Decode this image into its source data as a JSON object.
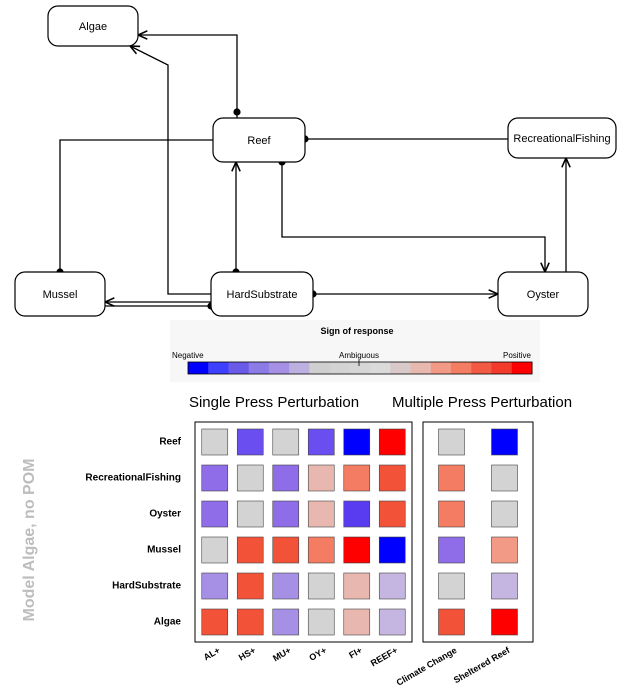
{
  "network": {
    "nodes": [
      {
        "id": "algae",
        "label": "Algae"
      },
      {
        "id": "reef",
        "label": "Reef"
      },
      {
        "id": "recfish",
        "label": "RecreationalFishing"
      },
      {
        "id": "mussel",
        "label": "Mussel"
      },
      {
        "id": "hardsub",
        "label": "HardSubstrate"
      },
      {
        "id": "oyster",
        "label": "Oyster"
      }
    ],
    "edges": [
      {
        "from": "reef",
        "to": "algae",
        "type": "arrow"
      },
      {
        "from": "algae",
        "to": "reef",
        "type": "dot"
      },
      {
        "from": "hardsub",
        "to": "algae",
        "type": "arrow"
      },
      {
        "from": "recfish",
        "to": "reef",
        "type": "dot"
      },
      {
        "from": "reef",
        "to": "mussel",
        "type": "dot"
      },
      {
        "from": "hardsub",
        "to": "reef",
        "type": "arrow"
      },
      {
        "from": "reef",
        "to": "hardsub",
        "type": "dot"
      },
      {
        "from": "reef",
        "to": "oyster",
        "type": "arrow"
      },
      {
        "from": "oyster",
        "to": "reef",
        "type": "dot"
      },
      {
        "from": "oyster",
        "to": "recfish",
        "type": "arrow"
      },
      {
        "from": "hardsub",
        "to": "mussel",
        "type": "arrow"
      },
      {
        "from": "mussel",
        "to": "hardsub",
        "type": "dot"
      },
      {
        "from": "hardsub",
        "to": "oyster",
        "type": "arrow"
      },
      {
        "from": "oyster",
        "to": "hardsub",
        "type": "dot"
      }
    ]
  },
  "legend": {
    "title": "Sign of response",
    "negative": "Negative",
    "ambiguous": "Ambiguous",
    "positive": "Positive",
    "colors": [
      "#0000ff",
      "#3f3fff",
      "#6a5ae8",
      "#8a7be6",
      "#a690e6",
      "#bcb0e0",
      "#cfcfcf",
      "#d3d3d3",
      "#d6d6d6",
      "#dadada",
      "#d8c8c8",
      "#e8b8b0",
      "#f29a85",
      "#f47c62",
      "#f25a44",
      "#f23a2a",
      "#ff0000"
    ]
  },
  "chart_data": {
    "type": "heatmap",
    "ylabel": "Model Algae, no POM",
    "rows": [
      "Reef",
      "RecreationalFishing",
      "Oyster",
      "Mussel",
      "HardSubstrate",
      "Algae"
    ],
    "panels": [
      {
        "title": "Single Press Perturbation",
        "columns": [
          "AL+",
          "HS+",
          "MU+",
          "OY+",
          "FI+",
          "REEF+"
        ],
        "cells": [
          [
            "#d3d3d3",
            "#6a4ef0",
            "#d3d3d3",
            "#6a4ef0",
            "#0000ff",
            "#ff0000"
          ],
          [
            "#8f6ce8",
            "#d3d3d3",
            "#8f6ce8",
            "#e8b8b0",
            "#f47c62",
            "#f25238"
          ],
          [
            "#8f6ce8",
            "#d3d3d3",
            "#8f6ce8",
            "#e8b8b0",
            "#5a3cf0",
            "#f25238"
          ],
          [
            "#d3d3d3",
            "#f25238",
            "#f25238",
            "#f47c62",
            "#ff0000",
            "#0000ff"
          ],
          [
            "#a690e6",
            "#f25238",
            "#a690e6",
            "#d3d3d3",
            "#e8b8b0",
            "#c4b6e0"
          ],
          [
            "#f25238",
            "#f25238",
            "#a690e6",
            "#d3d3d3",
            "#e8b8b0",
            "#c4b6e0"
          ]
        ]
      },
      {
        "title": "Multiple Press Perturbation",
        "columns": [
          "Climate Change",
          "Sheltered Reef"
        ],
        "cells": [
          [
            "#d3d3d3",
            "#0000ff"
          ],
          [
            "#f47c62",
            "#d3d3d3"
          ],
          [
            "#f47c62",
            "#d3d3d3"
          ],
          [
            "#8f6ce8",
            "#f29a85"
          ],
          [
            "#d3d3d3",
            "#c4b6e0"
          ],
          [
            "#f25238",
            "#ff0000"
          ]
        ]
      }
    ]
  }
}
